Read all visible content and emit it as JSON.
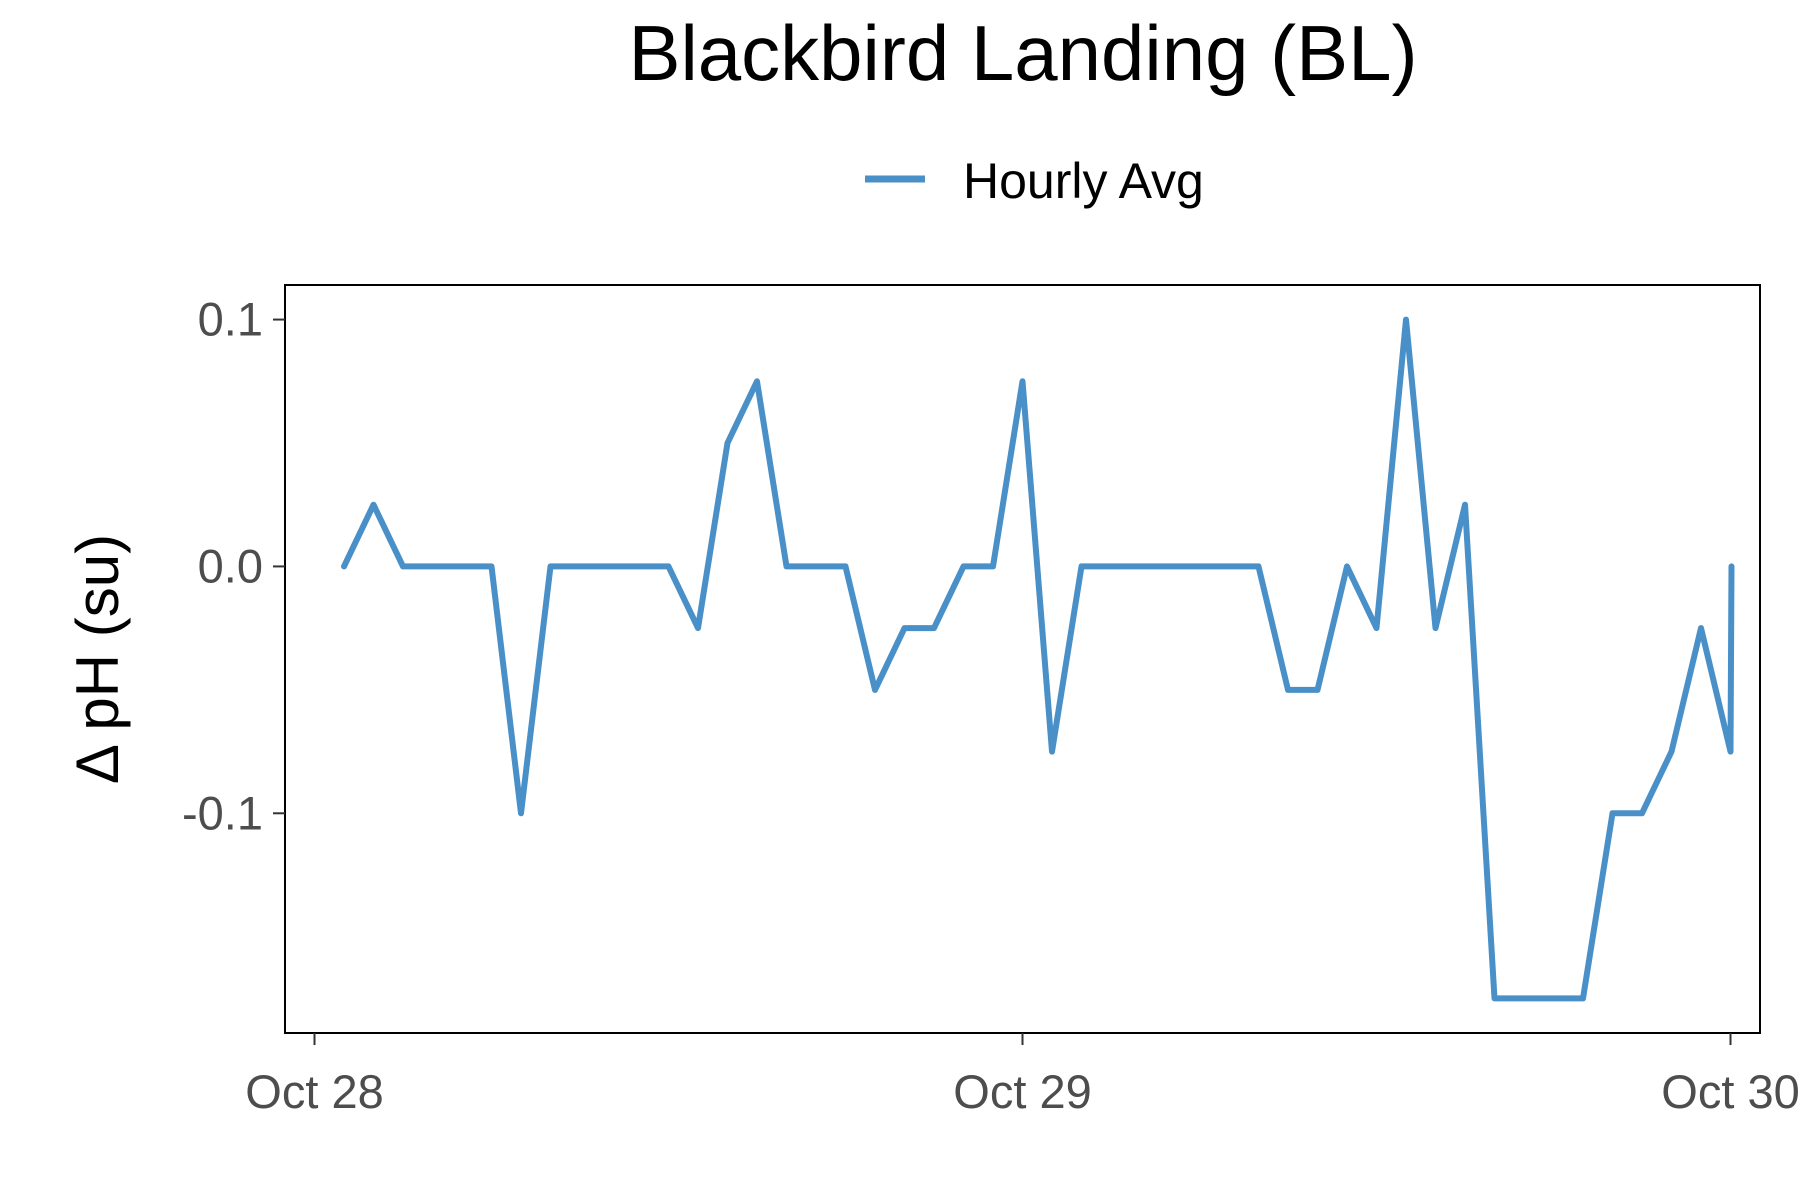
{
  "chart_data": {
    "type": "line",
    "title": "Blackbird Landing (BL)",
    "xlabel": "",
    "ylabel": "Δ pH (su)",
    "legend": {
      "position": "top",
      "entries": [
        "Hourly Avg"
      ]
    },
    "grid": false,
    "xlim": [
      "2023-10-27T23:00",
      "2023-10-30T01:00"
    ],
    "ylim": [
      -0.189,
      0.114
    ],
    "x_ticks": [
      {
        "value": "2023-10-28T00:00",
        "label": "Oct 28"
      },
      {
        "value": "2023-10-29T00:00",
        "label": "Oct 29"
      },
      {
        "value": "2023-10-30T00:00",
        "label": "Oct 30"
      }
    ],
    "y_ticks": [
      {
        "value": 0.1,
        "label": "0.1"
      },
      {
        "value": 0.0,
        "label": "0.0"
      },
      {
        "value": -0.1,
        "label": "-0.1"
      }
    ],
    "series": [
      {
        "name": "Hourly Avg",
        "color": "#4a90c8",
        "x": [
          "2023-10-28T01:00",
          "2023-10-28T02:00",
          "2023-10-28T03:00",
          "2023-10-28T04:00",
          "2023-10-28T05:00",
          "2023-10-28T06:00",
          "2023-10-28T07:00",
          "2023-10-28T08:00",
          "2023-10-28T09:00",
          "2023-10-28T10:00",
          "2023-10-28T11:00",
          "2023-10-28T12:00",
          "2023-10-28T13:00",
          "2023-10-28T14:00",
          "2023-10-28T15:00",
          "2023-10-28T16:00",
          "2023-10-28T17:00",
          "2023-10-28T18:00",
          "2023-10-28T19:00",
          "2023-10-28T20:00",
          "2023-10-28T21:00",
          "2023-10-28T22:00",
          "2023-10-28T23:00",
          "2023-10-29T00:00",
          "2023-10-29T01:00",
          "2023-10-29T02:00",
          "2023-10-29T03:00",
          "2023-10-29T04:00",
          "2023-10-29T05:00",
          "2023-10-29T06:00",
          "2023-10-29T07:00",
          "2023-10-29T08:00",
          "2023-10-29T09:00",
          "2023-10-29T10:00",
          "2023-10-29T11:00",
          "2023-10-29T12:00",
          "2023-10-29T13:00",
          "2023-10-29T14:00",
          "2023-10-29T15:00",
          "2023-10-29T16:00",
          "2023-10-29T17:00",
          "2023-10-29T18:00",
          "2023-10-29T19:00",
          "2023-10-29T20:00",
          "2023-10-29T21:00",
          "2023-10-29T22:00",
          "2023-10-29T23:00",
          "2023-10-30T00:00"
        ],
        "values": [
          0.0,
          0.025,
          0.0,
          0.0,
          0.0,
          0.0,
          -0.1,
          0.0,
          0.0,
          0.0,
          0.0,
          0.0,
          -0.025,
          0.05,
          0.075,
          0.0,
          0.0,
          0.0,
          -0.05,
          -0.025,
          -0.025,
          0.0,
          0.0,
          0.075,
          -0.075,
          0.0,
          0.0,
          0.0,
          0.0,
          0.0,
          0.0,
          0.0,
          -0.05,
          -0.05,
          0.0,
          -0.025,
          0.1,
          -0.025,
          0.025,
          -0.175,
          -0.175,
          -0.175,
          -0.175,
          -0.1,
          -0.1,
          -0.075,
          -0.025,
          -0.075
        ],
        "extra_point": {
          "x": "2023-10-30T00:00",
          "value": 0.0
        }
      }
    ]
  }
}
